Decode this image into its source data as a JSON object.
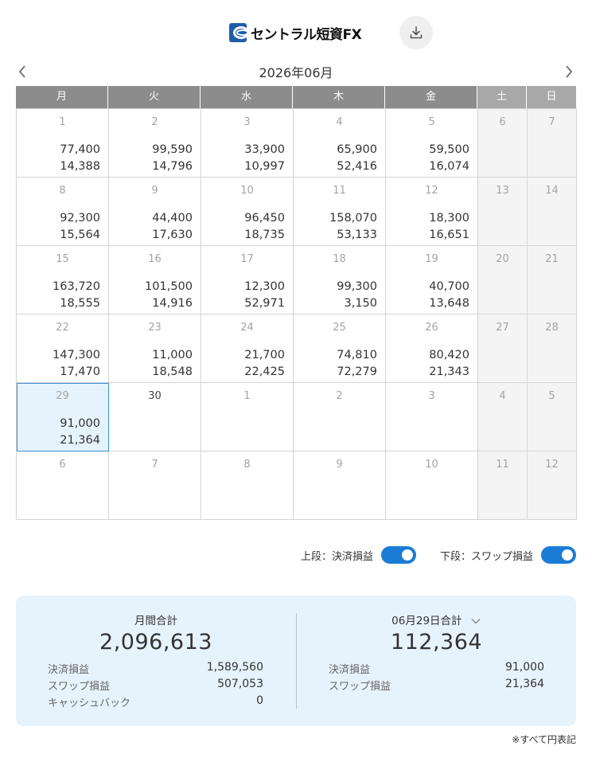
{
  "header": {
    "logo_text": "セントラル短資FX",
    "download_icon": "download-icon"
  },
  "calendar": {
    "month_title": "2026年06月",
    "weekdays": [
      "月",
      "火",
      "水",
      "木",
      "金",
      "土",
      "日"
    ],
    "weeks": [
      [
        {
          "day": "1",
          "v1": "77,400",
          "v2": "14,388"
        },
        {
          "day": "2",
          "v1": "99,590",
          "v2": "14,796"
        },
        {
          "day": "3",
          "v1": "33,900",
          "v2": "10,997"
        },
        {
          "day": "4",
          "v1": "65,900",
          "v2": "52,416"
        },
        {
          "day": "5",
          "v1": "59,500",
          "v2": "16,074"
        },
        {
          "day": "6"
        },
        {
          "day": "7"
        }
      ],
      [
        {
          "day": "8",
          "v1": "92,300",
          "v2": "15,564"
        },
        {
          "day": "9",
          "v1": "44,400",
          "v2": "17,630"
        },
        {
          "day": "10",
          "v1": "96,450",
          "v2": "18,735"
        },
        {
          "day": "11",
          "v1": "158,070",
          "v2": "53,133"
        },
        {
          "day": "12",
          "v1": "18,300",
          "v2": "16,651"
        },
        {
          "day": "13"
        },
        {
          "day": "14"
        }
      ],
      [
        {
          "day": "15",
          "v1": "163,720",
          "v2": "18,555"
        },
        {
          "day": "16",
          "v1": "101,500",
          "v2": "14,916"
        },
        {
          "day": "17",
          "v1": "12,300",
          "v2": "52,971"
        },
        {
          "day": "18",
          "v1": "99,300",
          "v2": "3,150"
        },
        {
          "day": "19",
          "v1": "40,700",
          "v2": "13,648"
        },
        {
          "day": "20"
        },
        {
          "day": "21"
        }
      ],
      [
        {
          "day": "22",
          "v1": "147,300",
          "v2": "17,470"
        },
        {
          "day": "23",
          "v1": "11,000",
          "v2": "18,548"
        },
        {
          "day": "24",
          "v1": "21,700",
          "v2": "22,425"
        },
        {
          "day": "25",
          "v1": "74,810",
          "v2": "72,279"
        },
        {
          "day": "26",
          "v1": "80,420",
          "v2": "21,343"
        },
        {
          "day": "27"
        },
        {
          "day": "28"
        }
      ],
      [
        {
          "day": "29",
          "v1": "91,000",
          "v2": "21,364",
          "selected": true
        },
        {
          "day": "30",
          "strong": true
        },
        {
          "day": "1"
        },
        {
          "day": "2"
        },
        {
          "day": "3"
        },
        {
          "day": "4"
        },
        {
          "day": "5"
        }
      ],
      [
        {
          "day": "6"
        },
        {
          "day": "7"
        },
        {
          "day": "8"
        },
        {
          "day": "9"
        },
        {
          "day": "10"
        },
        {
          "day": "11"
        },
        {
          "day": "12"
        }
      ]
    ]
  },
  "toggles": {
    "upper_label": "上段：決済損益",
    "lower_label": "下段：スワップ損益"
  },
  "summary": {
    "monthly": {
      "title": "月間合計",
      "total": "2,096,613",
      "rows": [
        {
          "label": "決済損益",
          "value": "1,589,560"
        },
        {
          "label": "スワップ損益",
          "value": "507,053"
        },
        {
          "label": "キャッシュバック",
          "value": "0"
        }
      ]
    },
    "daily": {
      "title": "06月29日合計",
      "total": "112,364",
      "rows": [
        {
          "label": "決済損益",
          "value": "91,000"
        },
        {
          "label": "スワップ損益",
          "value": "21,364"
        }
      ]
    }
  },
  "note": "※すべて円表記",
  "colors": {
    "accent": "#1a7cd6",
    "header_gray": "#8c8c8c",
    "summary_bg": "#e6f3fc"
  }
}
